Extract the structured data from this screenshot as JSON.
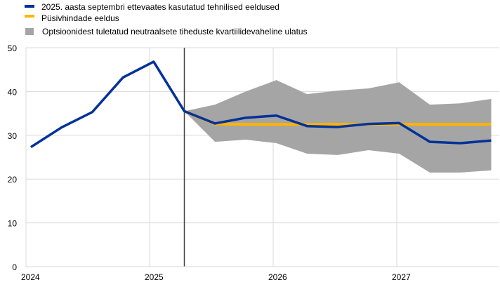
{
  "chart_data": {
    "type": "line",
    "title": "",
    "xlabel": "",
    "ylabel": "",
    "ylim": [
      0,
      50
    ],
    "yticks": [
      0,
      10,
      20,
      30,
      40,
      50
    ],
    "xticks": [
      "2024",
      "2025",
      "2026",
      "2027"
    ],
    "grid": true,
    "legend_position": "top-left",
    "vertical_marker_x": 2025.25,
    "x": [
      2024.0,
      2024.25,
      2024.5,
      2024.75,
      2025.0,
      2025.25,
      2025.5,
      2025.75,
      2026.0,
      2026.25,
      2026.5,
      2026.75,
      2027.0,
      2027.25,
      2027.5,
      2027.75
    ],
    "series": [
      {
        "name": "2025. aasta septembri ettevaates kasutatud tehnilised eeldused",
        "color": "#003299",
        "values": [
          27.3,
          31.8,
          35.3,
          43.2,
          46.8,
          35.5,
          32.7,
          34.0,
          34.5,
          32.1,
          31.9,
          32.6,
          32.8,
          28.5,
          28.2,
          28.8
        ]
      },
      {
        "name": "Püsivhindade eeldus",
        "color": "#ffb400",
        "values": [
          null,
          null,
          null,
          null,
          null,
          35.5,
          32.6,
          32.5,
          32.5,
          32.5,
          32.5,
          32.5,
          32.5,
          32.5,
          32.5,
          32.5
        ]
      }
    ],
    "band": {
      "name": "Optsioonidest tuletatud neutraalsete tiheduste kvartiilidevaheline ulatus",
      "color": "#a5a5a5",
      "upper": [
        null,
        null,
        null,
        null,
        null,
        35.5,
        37.0,
        40.0,
        42.6,
        39.4,
        40.2,
        40.7,
        42.1,
        37.0,
        37.3,
        38.3
      ],
      "lower": [
        null,
        null,
        null,
        null,
        null,
        35.5,
        28.5,
        29.0,
        28.2,
        25.8,
        25.5,
        26.6,
        25.8,
        21.5,
        21.5,
        22.0
      ]
    }
  }
}
